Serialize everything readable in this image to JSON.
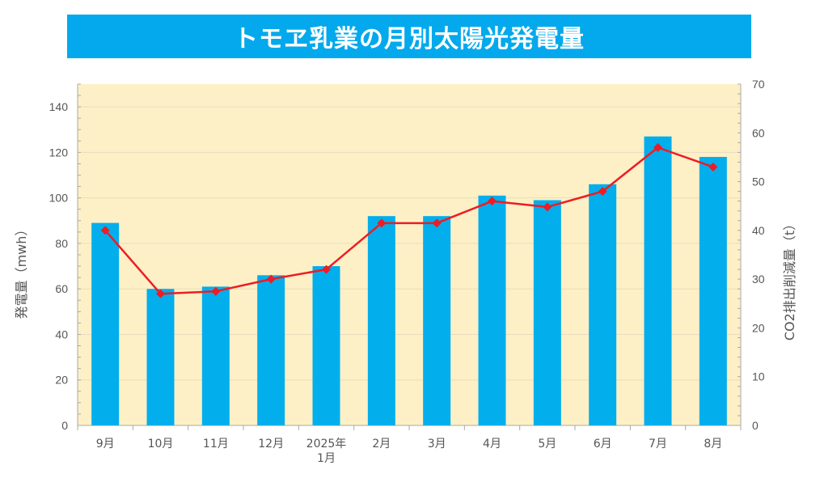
{
  "title": "トモヱ乳業の月別太陽光発電量",
  "colors": {
    "title_bg": "#03a9ec",
    "title_text": "#ffffff",
    "plot_bg": "#fdf0c6",
    "bar": "#03aeec",
    "line": "#ee1c24",
    "grid": "#e8dcc0",
    "axis": "#aaaaaa"
  },
  "chart_data": {
    "type": "bar",
    "title": "トモヱ乳業の月別太陽光発電量",
    "categories": [
      [
        "9月"
      ],
      [
        "10月"
      ],
      [
        "11月"
      ],
      [
        "12月"
      ],
      [
        "2025年",
        "1月"
      ],
      [
        "2月"
      ],
      [
        "3月"
      ],
      [
        "4月"
      ],
      [
        "5月"
      ],
      [
        "6月"
      ],
      [
        "7月"
      ],
      [
        "8月"
      ]
    ],
    "ylabel": "発電量（mwh）",
    "y2label": "CO2排出削減量（t）",
    "ylim": [
      0,
      150
    ],
    "y2lim": [
      0,
      70
    ],
    "yticks": [
      0,
      20,
      40,
      60,
      80,
      100,
      120,
      140
    ],
    "y2ticks": [
      0,
      10,
      20,
      30,
      40,
      50,
      60,
      70
    ],
    "series": [
      {
        "type": "bar",
        "axis": "left",
        "color": "#03aeec",
        "values": [
          89,
          60,
          61,
          66,
          70,
          92,
          92,
          101,
          99,
          106,
          127,
          118
        ]
      },
      {
        "type": "line",
        "axis": "right",
        "color": "#ee1c24",
        "marker": "diamond",
        "values": [
          40,
          27,
          27.5,
          30,
          32,
          41.5,
          41.5,
          46,
          44.8,
          48,
          57,
          53
        ]
      }
    ],
    "grid": true,
    "legend": "none"
  }
}
